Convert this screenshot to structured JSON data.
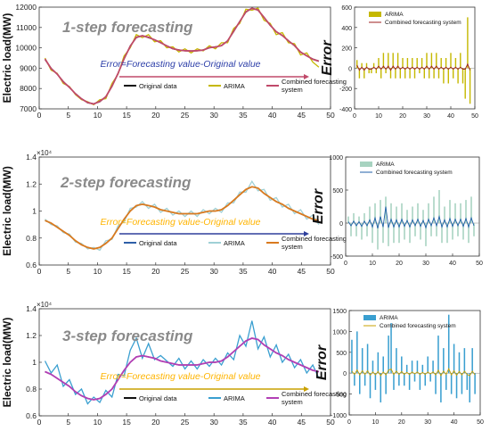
{
  "colors": {
    "original": "#111111",
    "arima": "#c5b800",
    "combined": "#c04a6a",
    "arima2": "#9fd0d6",
    "combined2": "#d97a1f",
    "original2": "#2e5fa8",
    "arima3": "#3a9fd0",
    "combined3": "#b23fb5",
    "annotation": "#ffb400",
    "arrow1": "#c04a6a",
    "arrow2": "#2e3f9c",
    "arrow3": "#c9a000",
    "err_line1": "#9c1c1c",
    "err_line2": "#1f5fa8",
    "err_line3": "#c9a000",
    "err_bar1": "#c5b800",
    "err_bar2": "#a7d3c0",
    "err_bar3": "#3a9fd0"
  },
  "chart_data": [
    {
      "type": "line",
      "title": "1-step forecasting",
      "ylabel": "Electric load(MW)",
      "annotation": "Error=Forecasting value-Original value",
      "xlim": [
        0,
        50
      ],
      "ylim": [
        7000,
        12000
      ],
      "xticks": [
        "0",
        "5",
        "10",
        "15",
        "20",
        "25",
        "30",
        "35",
        "40",
        "45",
        "50"
      ],
      "yticks": [
        "7000",
        "8000",
        "9000",
        "10000",
        "11000",
        "12000"
      ],
      "legend": [
        "Original data",
        "ARIMA",
        "Combined forecasting system"
      ],
      "series": [
        {
          "name": "Original data",
          "values": [
            9420,
            9000,
            8700,
            8350,
            8050,
            7750,
            7500,
            7300,
            7250,
            7350,
            7600,
            8100,
            8750,
            9450,
            10100,
            10500,
            10600,
            10500,
            10400,
            10250,
            10100,
            9950,
            9900,
            9850,
            9850,
            9850,
            9900,
            10000,
            10050,
            10100,
            10350,
            10800,
            11300,
            11750,
            11950,
            11850,
            11500,
            11100,
            10800,
            10600,
            10350,
            10100,
            9800,
            9600,
            9450,
            9350
          ]
        },
        {
          "name": "ARIMA",
          "values": [
            9500,
            8900,
            8750,
            8250,
            8100,
            7700,
            7450,
            7350,
            7200,
            7450,
            7500,
            8250,
            8700,
            9600,
            10000,
            10650,
            10500,
            10650,
            10300,
            10350,
            10000,
            10050,
            9800,
            9950,
            9750,
            9950,
            9850,
            10100,
            9950,
            10250,
            10250,
            10950,
            11200,
            11900,
            11850,
            11950,
            11350,
            11200,
            10650,
            10750,
            10250,
            10200,
            9650,
            9750,
            9300,
            9050
          ]
        },
        {
          "name": "Combined forecasting system",
          "values": [
            9450,
            8980,
            8710,
            8330,
            8060,
            7740,
            7490,
            7310,
            7240,
            7370,
            7590,
            8120,
            8740,
            9470,
            10080,
            10520,
            10590,
            10520,
            10390,
            10260,
            10090,
            9960,
            9890,
            9860,
            9840,
            9860,
            9890,
            10010,
            10040,
            10110,
            10340,
            10820,
            11290,
            11770,
            11940,
            11860,
            11490,
            11110,
            10790,
            10610,
            10340,
            10110,
            9790,
            9610,
            9440,
            9340
          ]
        }
      ]
    },
    {
      "type": "bar",
      "ylabel": "Error",
      "xlim": [
        0,
        50
      ],
      "ylim": [
        -400,
        600
      ],
      "xticks": [
        "0",
        "10",
        "20",
        "30",
        "40",
        "50"
      ],
      "yticks": [
        "-400",
        "-200",
        "0",
        "200",
        "400",
        "600"
      ],
      "legend": [
        "ARIMA",
        "Combined forecasting system"
      ],
      "series": [
        {
          "name": "ARIMA",
          "values": [
            80,
            -100,
            50,
            -100,
            50,
            -50,
            -50,
            50,
            -50,
            100,
            -100,
            150,
            -50,
            150,
            -100,
            150,
            -100,
            150,
            -100,
            100,
            -100,
            100,
            -100,
            100,
            -100,
            100,
            -50,
            100,
            -100,
            150,
            -100,
            150,
            -100,
            150,
            -100,
            100,
            -150,
            100,
            -150,
            150,
            -100,
            100,
            -150,
            150,
            -150,
            -300,
            500,
            -350
          ]
        },
        {
          "name": "Combined forecasting system",
          "values": [
            30,
            -20,
            10,
            -20,
            10,
            -10,
            -10,
            10,
            -10,
            20,
            -10,
            20,
            -10,
            20,
            -20,
            20,
            -10,
            20,
            -10,
            10,
            -10,
            10,
            -10,
            10,
            -10,
            10,
            -10,
            10,
            -10,
            20,
            -10,
            20,
            -10,
            20,
            -10,
            10,
            -10,
            10,
            -10,
            10,
            -10,
            10,
            -10,
            10,
            -10,
            -10,
            40,
            -20
          ]
        }
      ]
    },
    {
      "type": "line",
      "title": "2-step forecasting",
      "ylabel": "Electric load(MW)",
      "exponent": "×10⁴",
      "annotation": "Error=Forecasting value-Original value",
      "xlim": [
        0,
        50
      ],
      "ylim": [
        0.6,
        1.4
      ],
      "xticks": [
        "0",
        "5",
        "10",
        "15",
        "20",
        "25",
        "30",
        "35",
        "40",
        "45",
        "50"
      ],
      "yticks": [
        "0.6",
        "0.8",
        "1",
        "1.2",
        "1.4"
      ],
      "legend": [
        "Original data",
        "ARIMA",
        "Combined forecasting system"
      ],
      "series": [
        {
          "name": "Original data",
          "values": [
            0.93,
            0.91,
            0.88,
            0.85,
            0.82,
            0.78,
            0.75,
            0.73,
            0.72,
            0.73,
            0.76,
            0.8,
            0.87,
            0.94,
            1.0,
            1.04,
            1.05,
            1.04,
            1.03,
            1.01,
            1.0,
            0.99,
            0.98,
            0.98,
            0.98,
            0.98,
            0.99,
            1.0,
            1.0,
            1.01,
            1.04,
            1.08,
            1.12,
            1.16,
            1.18,
            1.17,
            1.13,
            1.1,
            1.07,
            1.05,
            1.02,
            1.0,
            0.98,
            0.96,
            0.94,
            0.93
          ]
        },
        {
          "name": "ARIMA",
          "values": [
            0.94,
            0.9,
            0.89,
            0.84,
            0.83,
            0.77,
            0.76,
            0.72,
            0.73,
            0.71,
            0.78,
            0.79,
            0.89,
            0.92,
            1.02,
            1.03,
            1.07,
            1.02,
            1.05,
            0.99,
            1.02,
            0.97,
            1.0,
            0.96,
            1.0,
            0.96,
            1.01,
            0.98,
            1.02,
            0.99,
            1.06,
            1.06,
            1.14,
            1.14,
            1.22,
            1.15,
            1.16,
            1.08,
            1.1,
            1.03,
            1.05,
            0.98,
            1.01,
            0.94,
            0.97,
            0.9
          ]
        },
        {
          "name": "Combined forecasting system",
          "values": [
            0.93,
            0.91,
            0.88,
            0.85,
            0.82,
            0.78,
            0.75,
            0.73,
            0.72,
            0.73,
            0.76,
            0.8,
            0.87,
            0.94,
            1.0,
            1.04,
            1.05,
            1.04,
            1.03,
            1.01,
            1.0,
            0.99,
            0.98,
            0.98,
            0.98,
            0.98,
            0.99,
            1.0,
            1.0,
            1.01,
            1.04,
            1.08,
            1.12,
            1.16,
            1.18,
            1.17,
            1.13,
            1.1,
            1.07,
            1.05,
            1.02,
            1.0,
            0.98,
            0.96,
            0.94,
            0.93
          ]
        }
      ]
    },
    {
      "type": "bar",
      "ylabel": "Error",
      "xlim": [
        0,
        50
      ],
      "ylim": [
        -500,
        1000
      ],
      "xticks": [
        "0",
        "10",
        "20",
        "30",
        "40",
        "50"
      ],
      "yticks": [
        "-500",
        "0",
        "500",
        "1000"
      ],
      "legend": [
        "ARIMA",
        "Combined forecasting system"
      ],
      "series": [
        {
          "name": "ARIMA",
          "values": [
            100,
            -200,
            150,
            -200,
            100,
            -250,
            150,
            -200,
            250,
            -300,
            300,
            -400,
            350,
            -300,
            400,
            -350,
            300,
            -300,
            250,
            -300,
            300,
            -250,
            200,
            -300,
            250,
            -200,
            300,
            -250,
            200,
            -350,
            300,
            -200,
            400,
            -200,
            500,
            -300,
            250,
            -300,
            350,
            -250,
            300,
            -200,
            300,
            -250,
            350,
            -300,
            400,
            -200
          ]
        },
        {
          "name": "Combined forecasting system",
          "values": [
            20,
            -40,
            30,
            -40,
            20,
            -50,
            30,
            -40,
            50,
            -60,
            80,
            -80,
            100,
            -60,
            250,
            -70,
            60,
            -60,
            50,
            -60,
            60,
            -50,
            40,
            -60,
            50,
            -40,
            60,
            -50,
            40,
            -70,
            60,
            -40,
            80,
            -40,
            100,
            -60,
            50,
            -60,
            70,
            -50,
            60,
            -40,
            60,
            -50,
            70,
            -60,
            80,
            -40
          ]
        }
      ]
    },
    {
      "type": "line",
      "title": "3-step forecasting",
      "ylabel": "Electric load(MW)",
      "exponent": "×10⁴",
      "annotation": "Error=Forecasting value-Original value",
      "xlim": [
        0,
        50
      ],
      "ylim": [
        0.6,
        1.4
      ],
      "xticks": [
        "0",
        "5",
        "10",
        "15",
        "20",
        "25",
        "30",
        "35",
        "40",
        "45",
        "50"
      ],
      "yticks": [
        "0.6",
        "0.8",
        "1",
        "1.2",
        "1.4"
      ],
      "legend": [
        "Original data",
        "ARIMA",
        "Combined forecasting system"
      ],
      "series": [
        {
          "name": "Original data",
          "values": [
            0.93,
            0.91,
            0.88,
            0.85,
            0.82,
            0.78,
            0.75,
            0.73,
            0.72,
            0.73,
            0.76,
            0.8,
            0.87,
            0.94,
            1.0,
            1.04,
            1.05,
            1.04,
            1.03,
            1.01,
            1.0,
            0.99,
            0.98,
            0.98,
            0.98,
            0.98,
            0.99,
            1.0,
            1.0,
            1.01,
            1.04,
            1.08,
            1.12,
            1.16,
            1.18,
            1.17,
            1.13,
            1.1,
            1.07,
            1.05,
            1.02,
            1.0,
            0.98,
            0.96,
            0.94,
            0.93
          ]
        },
        {
          "name": "ARIMA",
          "values": [
            1.01,
            0.92,
            0.98,
            0.82,
            0.87,
            0.76,
            0.8,
            0.69,
            0.74,
            0.7,
            0.79,
            0.74,
            0.91,
            0.9,
            1.09,
            1.18,
            1.03,
            1.14,
            1.02,
            1.05,
            1.01,
            0.97,
            1.03,
            0.95,
            1.01,
            0.95,
            1.02,
            0.97,
            1.03,
            0.98,
            1.07,
            1.02,
            1.2,
            1.12,
            1.31,
            1.1,
            1.19,
            1.04,
            1.13,
            1.0,
            1.06,
            0.96,
            1.02,
            0.92,
            0.98,
            0.88
          ]
        },
        {
          "name": "Combined forecasting system",
          "values": [
            0.93,
            0.91,
            0.88,
            0.85,
            0.82,
            0.78,
            0.75,
            0.73,
            0.72,
            0.73,
            0.76,
            0.8,
            0.87,
            0.94,
            1.0,
            1.04,
            1.05,
            1.04,
            1.03,
            1.01,
            1.0,
            0.99,
            0.98,
            0.98,
            0.98,
            0.98,
            0.99,
            1.0,
            1.0,
            1.01,
            1.04,
            1.08,
            1.12,
            1.16,
            1.18,
            1.17,
            1.13,
            1.1,
            1.07,
            1.05,
            1.02,
            1.0,
            0.98,
            0.96,
            0.94,
            0.93
          ]
        }
      ]
    },
    {
      "type": "bar",
      "ylabel": "Error",
      "xlim": [
        0,
        50
      ],
      "ylim": [
        -1000,
        1500
      ],
      "xticks": [
        "0",
        "10",
        "20",
        "30",
        "40",
        "50"
      ],
      "yticks": [
        "-1000",
        "-500",
        "0",
        "500",
        "1000",
        "1500"
      ],
      "legend": [
        "ARIMA",
        "Combined forecasting system"
      ],
      "series": [
        {
          "name": "ARIMA",
          "values": [
            800,
            -300,
            1000,
            -500,
            600,
            -300,
            700,
            -600,
            300,
            -400,
            500,
            -700,
            400,
            -500,
            900,
            1200,
            -400,
            600,
            -300,
            400,
            -300,
            200,
            -400,
            300,
            -200,
            300,
            -400,
            200,
            -300,
            400,
            -200,
            300,
            -500,
            900,
            -700,
            600,
            -400,
            1400,
            -500,
            700,
            -600,
            500,
            -500,
            600,
            -400,
            -700,
            600,
            -500
          ]
        },
        {
          "name": "Combined forecasting system",
          "values": [
            50,
            -30,
            80,
            -40,
            60,
            -30,
            60,
            -50,
            30,
            -40,
            40,
            -60,
            30,
            -40,
            70,
            100,
            -30,
            50,
            -30,
            40,
            -30,
            20,
            -30,
            30,
            -20,
            30,
            -30,
            20,
            -30,
            30,
            -20,
            30,
            -40,
            70,
            -60,
            50,
            -30,
            110,
            -40,
            60,
            -50,
            40,
            -40,
            50,
            -30,
            -60,
            50,
            -40
          ]
        }
      ]
    }
  ]
}
